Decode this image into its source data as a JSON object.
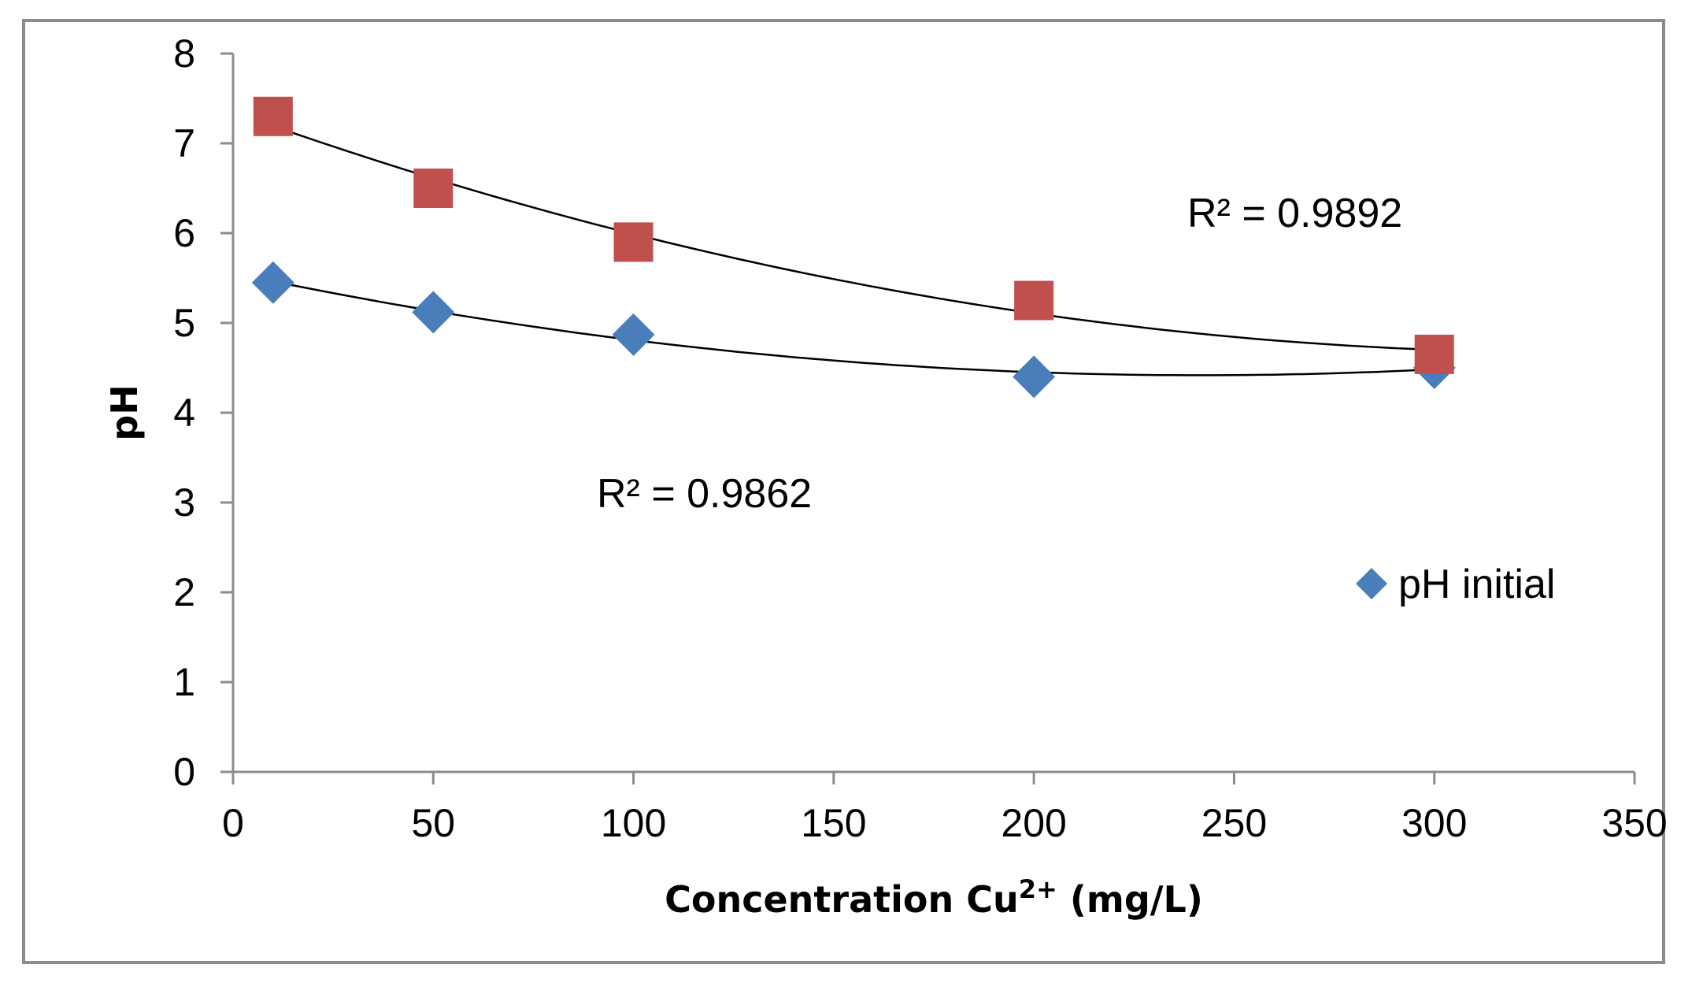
{
  "chart_data": {
    "type": "scatter",
    "title": "",
    "xlabel": "Concentration Cu",
    "xlabel_sup": "2+",
    "xlabel_unit": " (mg/L)",
    "ylabel": "pH",
    "xlim": [
      0,
      350
    ],
    "ylim": [
      0,
      8
    ],
    "xticks": [
      "0",
      "50",
      "100",
      "150",
      "200",
      "250",
      "300",
      "350"
    ],
    "yticks": [
      "0",
      "1",
      "2",
      "3",
      "4",
      "5",
      "6",
      "7",
      "8"
    ],
    "grid": false,
    "legend_position": "right",
    "series": [
      {
        "name": "pH initial",
        "marker": "diamond",
        "color": "#4a7ebb",
        "x": [
          10,
          50,
          100,
          200,
          300
        ],
        "y": [
          5.45,
          5.12,
          4.87,
          4.4,
          4.5
        ],
        "trendline": "polynomial",
        "r2_label": "R² = 0.9862"
      },
      {
        "name": "",
        "marker": "square",
        "color": "#c0504d",
        "x": [
          10,
          50,
          100,
          200,
          300
        ],
        "y": [
          7.3,
          6.5,
          5.9,
          5.25,
          4.65
        ],
        "trendline": "polynomial",
        "r2_label": "R² = 0.9892"
      }
    ],
    "annotations": [
      "R² = 0.9892",
      "R² = 0.9862"
    ],
    "legend": [
      "pH initial"
    ]
  }
}
